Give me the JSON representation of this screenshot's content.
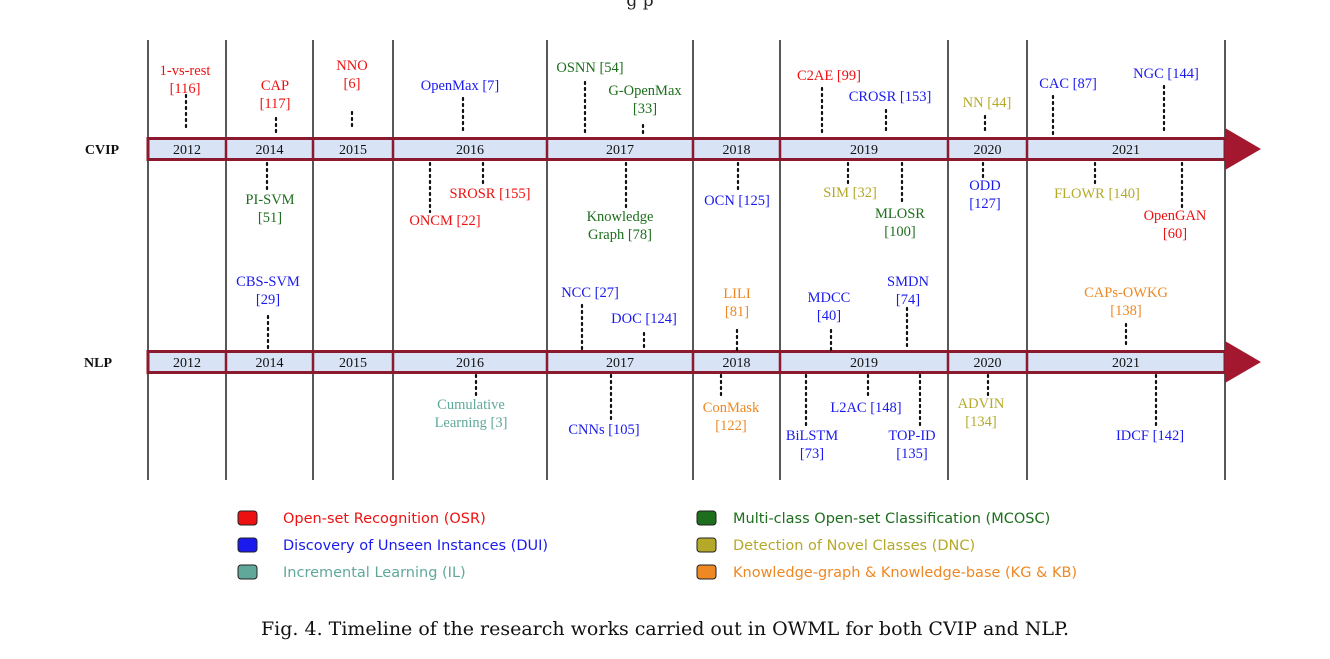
{
  "top_fragment": "g          p",
  "rows": [
    {
      "id": "cvip",
      "label": "CVIP"
    },
    {
      "id": "nlp",
      "label": "NLP"
    }
  ],
  "years": [
    "2012",
    "2014",
    "2015",
    "2016",
    "2017",
    "2018",
    "2019",
    "2020",
    "2021"
  ],
  "categories": [
    {
      "key": "osr",
      "label": "Open-set Recognition (OSR)",
      "color": "#ee1111"
    },
    {
      "key": "dui",
      "label": "Discovery of Unseen Instances (DUI)",
      "color": "#1a1aee"
    },
    {
      "key": "il",
      "label": "Incremental Learning (IL)",
      "color": "#5fa89a"
    },
    {
      "key": "mcosc",
      "label": "Multi-class Open-set Classification (MCOSC)",
      "color": "#1d6e1d"
    },
    {
      "key": "dnc",
      "label": "Detection of Novel Classes (DNC)",
      "color": "#b5a92a"
    },
    {
      "key": "kgkb",
      "label": "Knowledge-graph & Knowledge-base (KG & KB)",
      "color": "#ee8822"
    }
  ],
  "works": [
    {
      "row": "cvip",
      "side": "above",
      "cat": "osr",
      "lines": [
        "1-vs-rest",
        "[116]"
      ]
    },
    {
      "row": "cvip",
      "side": "above",
      "cat": "osr",
      "lines": [
        "CAP",
        "[117]"
      ]
    },
    {
      "row": "cvip",
      "side": "above",
      "cat": "osr",
      "lines": [
        "NNO",
        "[6]"
      ]
    },
    {
      "row": "cvip",
      "side": "above",
      "cat": "dui",
      "lines": [
        "OpenMax  [7]"
      ]
    },
    {
      "row": "cvip",
      "side": "above",
      "cat": "mcosc",
      "lines": [
        "OSNN [54]"
      ]
    },
    {
      "row": "cvip",
      "side": "above",
      "cat": "mcosc",
      "lines": [
        "G-OpenMax",
        "[33]"
      ]
    },
    {
      "row": "cvip",
      "side": "above",
      "cat": "osr",
      "lines": [
        "C2AE [99]"
      ]
    },
    {
      "row": "cvip",
      "side": "above",
      "cat": "dui",
      "lines": [
        "CROSR [153]"
      ]
    },
    {
      "row": "cvip",
      "side": "above",
      "cat": "dnc",
      "lines": [
        "NN [44]"
      ]
    },
    {
      "row": "cvip",
      "side": "above",
      "cat": "dui",
      "lines": [
        "CAC [87]"
      ]
    },
    {
      "row": "cvip",
      "side": "above",
      "cat": "dui",
      "lines": [
        "NGC [144]"
      ]
    },
    {
      "row": "cvip",
      "side": "below",
      "cat": "mcosc",
      "lines": [
        "PI-SVM",
        "[51]"
      ]
    },
    {
      "row": "cvip",
      "side": "below",
      "cat": "osr",
      "lines": [
        "SROSR [155]"
      ]
    },
    {
      "row": "cvip",
      "side": "below",
      "cat": "osr",
      "lines": [
        "ONCM [22]"
      ]
    },
    {
      "row": "cvip",
      "side": "below",
      "cat": "mcosc",
      "lines": [
        "Knowledge",
        "Graph [78]"
      ]
    },
    {
      "row": "cvip",
      "side": "below",
      "cat": "dui",
      "lines": [
        "OCN [125]"
      ]
    },
    {
      "row": "cvip",
      "side": "below",
      "cat": "dnc",
      "lines": [
        "SIM [32]"
      ]
    },
    {
      "row": "cvip",
      "side": "below",
      "cat": "mcosc",
      "lines": [
        "MLOSR",
        "[100]"
      ]
    },
    {
      "row": "cvip",
      "side": "below",
      "cat": "dui",
      "lines": [
        "ODD",
        "[127]"
      ]
    },
    {
      "row": "cvip",
      "side": "below",
      "cat": "dnc",
      "lines": [
        "FLOWR [140]"
      ]
    },
    {
      "row": "cvip",
      "side": "below",
      "cat": "osr",
      "lines": [
        "OpenGAN",
        "[60]"
      ]
    },
    {
      "row": "nlp",
      "side": "above",
      "cat": "dui",
      "lines": [
        "CBS-SVM",
        "[29]"
      ]
    },
    {
      "row": "nlp",
      "side": "above",
      "cat": "dui",
      "lines": [
        "NCC [27]"
      ]
    },
    {
      "row": "nlp",
      "side": "above",
      "cat": "dui",
      "lines": [
        "DOC [124]"
      ]
    },
    {
      "row": "nlp",
      "side": "above",
      "cat": "kgkb",
      "lines": [
        "LILI",
        "[81]"
      ]
    },
    {
      "row": "nlp",
      "side": "above",
      "cat": "dui",
      "lines": [
        "MDCC",
        "[40]"
      ]
    },
    {
      "row": "nlp",
      "side": "above",
      "cat": "dui",
      "lines": [
        "SMDN",
        "[74]"
      ]
    },
    {
      "row": "nlp",
      "side": "above",
      "cat": "kgkb",
      "lines": [
        "CAPs-OWKG",
        "[138]"
      ]
    },
    {
      "row": "nlp",
      "side": "below",
      "cat": "il",
      "lines": [
        "Cumulative",
        "Learning [3]"
      ]
    },
    {
      "row": "nlp",
      "side": "below",
      "cat": "dui",
      "lines": [
        "CNNs [105]"
      ]
    },
    {
      "row": "nlp",
      "side": "below",
      "cat": "kgkb",
      "lines": [
        "ConMask",
        "[122]"
      ]
    },
    {
      "row": "nlp",
      "side": "below",
      "cat": "dui",
      "lines": [
        "L2AC [148]"
      ]
    },
    {
      "row": "nlp",
      "side": "below",
      "cat": "dui",
      "lines": [
        "BiLSTM",
        "[73]"
      ]
    },
    {
      "row": "nlp",
      "side": "below",
      "cat": "dui",
      "lines": [
        "TOP-ID",
        "[135]"
      ]
    },
    {
      "row": "nlp",
      "side": "below",
      "cat": "dnc",
      "lines": [
        "ADVIN",
        "[134]"
      ]
    },
    {
      "row": "nlp",
      "side": "below",
      "cat": "dui",
      "lines": [
        "IDCF [142]"
      ]
    }
  ],
  "caption": "Fig. 4.  Timeline of the research works carried out in OWML for both CVIP and NLP."
}
